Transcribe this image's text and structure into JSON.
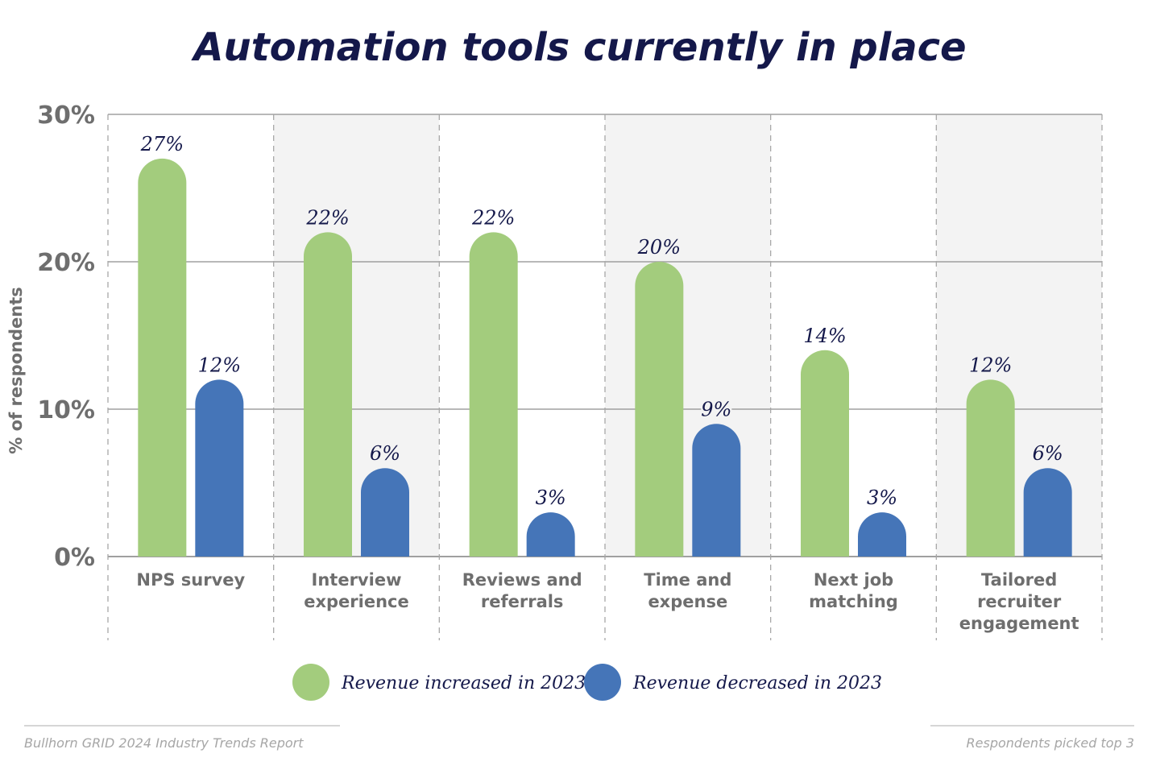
{
  "chart_data": {
    "type": "bar",
    "title": "Automation tools currently in place",
    "ylabel": "% of respondents",
    "ylim": [
      0,
      30
    ],
    "yticks": [
      "0%",
      "10%",
      "20%",
      "30%"
    ],
    "categories": [
      [
        "NPS survey"
      ],
      [
        "Interview",
        "experience"
      ],
      [
        "Reviews and",
        "referrals"
      ],
      [
        "Time and",
        "expense"
      ],
      [
        "Next job",
        "matching"
      ],
      [
        "Tailored",
        "recruiter",
        "engagement"
      ]
    ],
    "series": [
      {
        "name": "Revenue increased in 2023",
        "color": "#a3cc7d",
        "values": [
          27,
          22,
          22,
          20,
          14,
          12
        ],
        "labels": [
          "27%",
          "22%",
          "22%",
          "20%",
          "14%",
          "12%"
        ]
      },
      {
        "name": "Revenue decreased in 2023",
        "color": "#4575b8",
        "values": [
          12,
          6,
          3,
          9,
          3,
          6
        ],
        "labels": [
          "12%",
          "6%",
          "3%",
          "9%",
          "3%",
          "6%"
        ]
      }
    ],
    "grid": true,
    "legend_position": "bottom"
  },
  "footer": {
    "source": "Bullhorn GRID 2024 Industry Trends Report",
    "note": "Respondents picked top 3"
  },
  "colors": {
    "title": "#14184a",
    "axis_text": "#6e6e6e",
    "band": "#f3f3f3",
    "grid": "#a0a0a0"
  }
}
